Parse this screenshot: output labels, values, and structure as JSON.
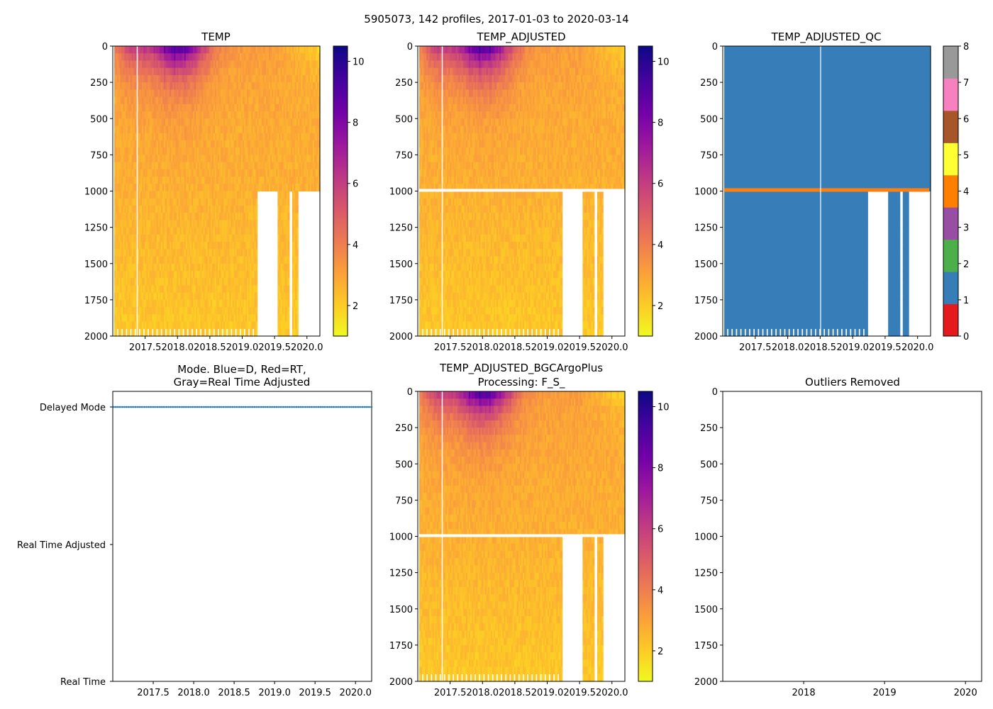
{
  "suptitle": "5905073, 142 profiles, 2017-01-03 to 2020-03-14",
  "colors": {
    "plasma": [
      "#f0f921",
      "#fdca26",
      "#fb9f3a",
      "#ed7953",
      "#d8576b",
      "#bd3786",
      "#9c179e",
      "#7201a8",
      "#46039f",
      "#0d0887"
    ],
    "qc": [
      "#e41a1c",
      "#377eb8",
      "#4daf4a",
      "#984ea3",
      "#ff7f00",
      "#ffff33",
      "#a65628",
      "#f781bf",
      "#999999"
    ],
    "qc_profile": "#377eb8",
    "qc_flag_band": "#ff7f0e",
    "mode_marker": "#1f77b4"
  },
  "chart_data": [
    {
      "id": "temp",
      "type": "heatmap",
      "title": "TEMP",
      "x_ticks": [
        "2017.5",
        "2018.0",
        "2018.5",
        "2019.0",
        "2019.5",
        "2020.0"
      ],
      "x_tick_values": [
        2017.5,
        2018.0,
        2018.5,
        2019.0,
        2019.5,
        2020.0
      ],
      "xlim": [
        2017.0,
        2020.2
      ],
      "y_ticks": [
        "0",
        "250",
        "500",
        "750",
        "1000",
        "1250",
        "1500",
        "1750",
        "2000"
      ],
      "ylim": [
        2000,
        0
      ],
      "colorbar_ticks": [
        "2",
        "4",
        "6",
        "8",
        "10"
      ],
      "color_range": [
        1,
        10.5
      ],
      "colormap": "plasma_r",
      "missing_deep_after": 1000,
      "missing_deep_intervals": [
        [
          2019.22,
          2019.55
        ],
        [
          2019.72,
          2019.78
        ],
        [
          2019.86,
          2020.2
        ]
      ]
    },
    {
      "id": "temp_adjusted",
      "type": "heatmap",
      "title": "TEMP_ADJUSTED",
      "x_ticks": [
        "2017.5",
        "2018.0",
        "2018.5",
        "2019.0",
        "2019.5",
        "2020.0"
      ],
      "x_tick_values": [
        2017.5,
        2018.0,
        2018.5,
        2019.0,
        2019.5,
        2020.0
      ],
      "xlim": [
        2017.0,
        2020.2
      ],
      "y_ticks": [
        "0",
        "250",
        "500",
        "750",
        "1000",
        "1250",
        "1500",
        "1750",
        "2000"
      ],
      "ylim": [
        2000,
        0
      ],
      "colorbar_ticks": [
        "2",
        "4",
        "6",
        "8",
        "10"
      ],
      "color_range": [
        1,
        10.5
      ],
      "colormap": "plasma_r",
      "gap_depth_range": [
        985,
        995
      ],
      "missing_deep_intervals": [
        [
          2019.22,
          2019.55
        ],
        [
          2019.72,
          2019.78
        ],
        [
          2019.86,
          2020.2
        ]
      ]
    },
    {
      "id": "temp_adjusted_qc",
      "type": "heatmap",
      "title": "TEMP_ADJUSTED_QC",
      "x_ticks": [
        "2017.5",
        "2018.0",
        "2018.5",
        "2019.0",
        "2019.5",
        "2020.0"
      ],
      "x_tick_values": [
        2017.5,
        2018.0,
        2018.5,
        2019.0,
        2019.5,
        2020.0
      ],
      "xlim": [
        2017.0,
        2020.2
      ],
      "y_ticks": [
        "0",
        "250",
        "500",
        "750",
        "1000",
        "1250",
        "1500",
        "1750",
        "2000"
      ],
      "ylim": [
        2000,
        0
      ],
      "colorbar_ticks": [
        "0",
        "1",
        "2",
        "3",
        "4",
        "5",
        "6",
        "7",
        "8"
      ],
      "qc_value_main": 1,
      "qc_value_band": 4,
      "band_depth": 990,
      "missing_deep_intervals": [
        [
          2019.22,
          2019.55
        ],
        [
          2019.72,
          2019.78
        ],
        [
          2019.86,
          2020.2
        ]
      ]
    },
    {
      "id": "mode",
      "type": "scatter",
      "title_line1": "Mode. Blue=D, Red=RT,",
      "title_line2": "Gray=Real Time Adjusted",
      "y_ticks": [
        "Delayed Mode",
        "Real Time Adjusted",
        "Real Time"
      ],
      "x_ticks": [
        "2017.5",
        "2018.0",
        "2018.5",
        "2019.0",
        "2019.5",
        "2020.0"
      ],
      "x_tick_values": [
        2017.5,
        2018.0,
        2018.5,
        2019.0,
        2019.5,
        2020.0
      ],
      "xlim": [
        2017.0,
        2020.2
      ],
      "series": [
        {
          "name": "Delayed Mode",
          "y_level": "Delayed Mode",
          "n_points": 142,
          "x_start": 2017.01,
          "x_end": 2020.2
        }
      ]
    },
    {
      "id": "temp_bgc",
      "type": "heatmap",
      "title_line1": "TEMP_ADJUSTED_BGCArgoPlus",
      "title_line2": "Processing: F_S_",
      "x_ticks": [
        "2017.5",
        "2018.0",
        "2018.5",
        "2019.0",
        "2019.5",
        "2020.0"
      ],
      "x_tick_values": [
        2017.5,
        2018.0,
        2018.5,
        2019.0,
        2019.5,
        2020.0
      ],
      "xlim": [
        2017.0,
        2020.2
      ],
      "y_ticks": [
        "0",
        "250",
        "500",
        "750",
        "1000",
        "1250",
        "1500",
        "1750",
        "2000"
      ],
      "ylim": [
        2000,
        0
      ],
      "colorbar_ticks": [
        "2",
        "4",
        "6",
        "8",
        "10"
      ],
      "color_range": [
        1,
        10.5
      ],
      "colormap": "plasma_r",
      "gap_depth_range": [
        985,
        995
      ],
      "missing_deep_intervals": [
        [
          2019.22,
          2019.55
        ],
        [
          2019.72,
          2019.78
        ],
        [
          2019.86,
          2020.2
        ]
      ]
    },
    {
      "id": "outliers",
      "type": "scatter",
      "title": "Outliers Removed",
      "x_ticks": [
        "2018",
        "2019",
        "2020"
      ],
      "x_tick_values": [
        2018,
        2019,
        2020
      ],
      "xlim": [
        2017.0,
        2020.2
      ],
      "y_ticks": [
        "0",
        "250",
        "500",
        "750",
        "1000",
        "1250",
        "1500",
        "1750",
        "2000"
      ],
      "ylim": [
        2000,
        0
      ],
      "series": []
    }
  ]
}
